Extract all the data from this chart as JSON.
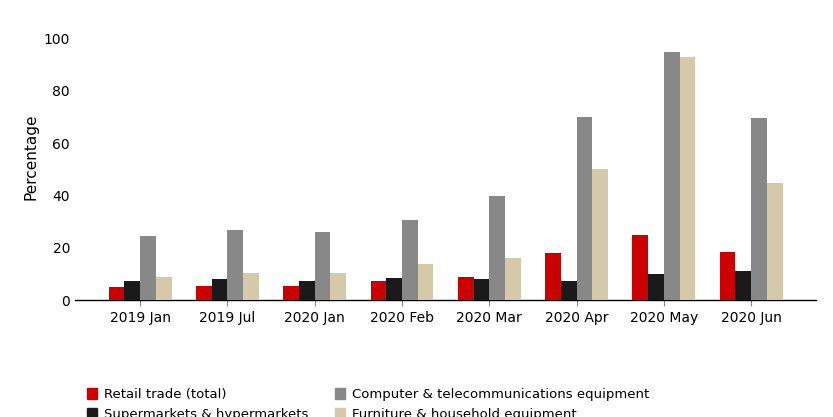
{
  "categories": [
    "2019 Jan",
    "2019 Jul",
    "2020 Jan",
    "2020 Feb",
    "2020 Mar",
    "2020 Apr",
    "2020 May",
    "2020 Jun"
  ],
  "series": {
    "Retail trade (total)": [
      5,
      5.5,
      5.5,
      7.5,
      9,
      18,
      25,
      18.5
    ],
    "Supermarkets & hypermarkets": [
      7.5,
      8,
      7.5,
      8.5,
      8,
      7.5,
      10,
      11
    ],
    "Computer & telecommunications equipment": [
      24.5,
      27,
      26,
      30.5,
      40,
      70,
      95,
      69.5
    ],
    "Furniture & household equipment": [
      9,
      10.5,
      10.5,
      14,
      16,
      50,
      93,
      45
    ]
  },
  "colors": {
    "Retail trade (total)": "#cc0000",
    "Supermarkets & hypermarkets": "#1a1a1a",
    "Computer & telecommunications equipment": "#888888",
    "Furniture & household equipment": "#d4c9a8"
  },
  "ylabel": "Percentage",
  "ylim": [
    0,
    110
  ],
  "yticks": [
    0,
    20,
    40,
    60,
    80,
    100
  ],
  "legend_order": [
    "Retail trade (total)",
    "Supermarkets & hypermarkets",
    "Computer & telecommunications equipment",
    "Furniture & household equipment"
  ],
  "background_color": "#ffffff",
  "bar_width": 0.18,
  "figsize": [
    8.33,
    4.17
  ],
  "dpi": 100
}
